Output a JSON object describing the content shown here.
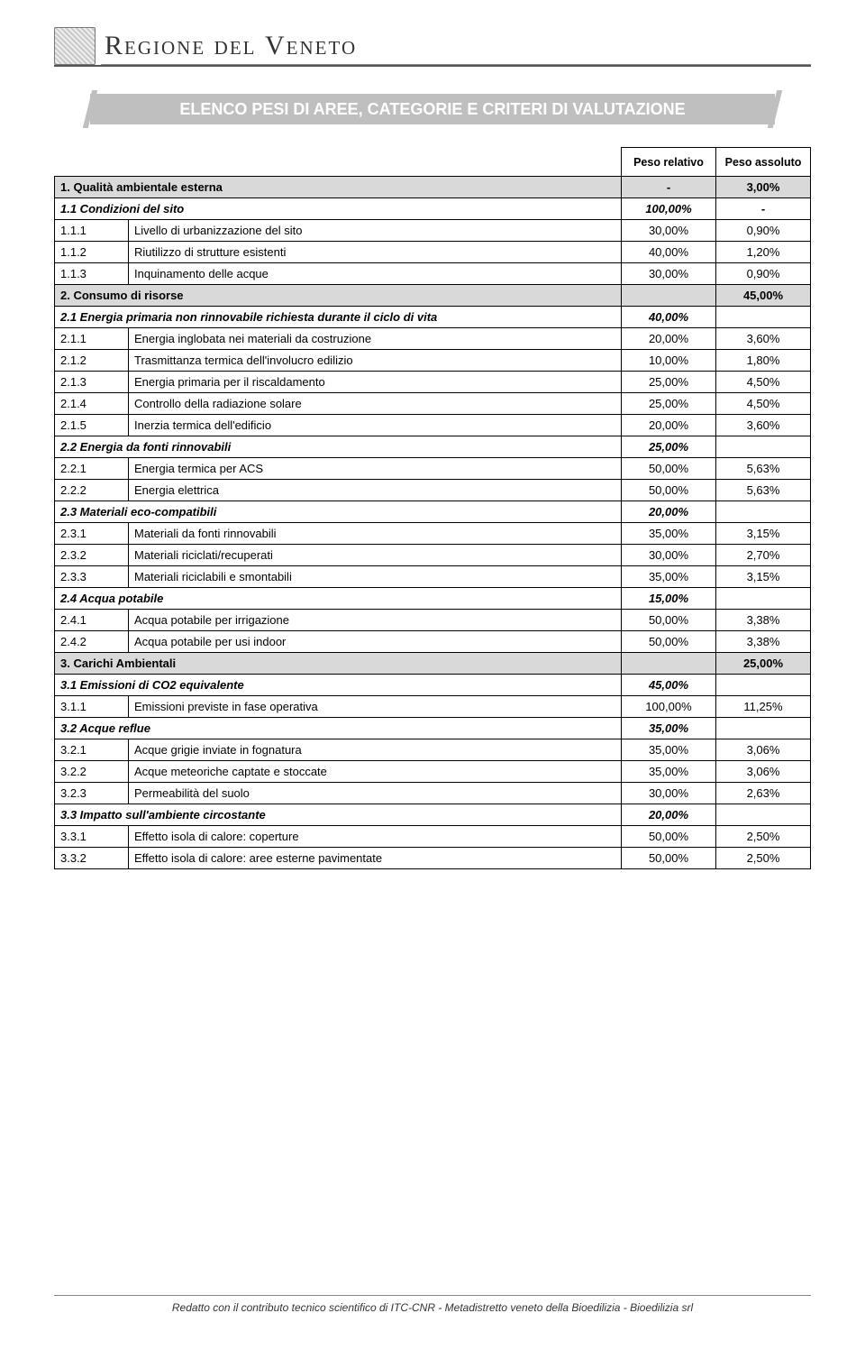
{
  "header": {
    "region_title_prefix": "R",
    "region_title_main_sc": "egione",
    "region_title_mid": " del ",
    "region_title_end_prefix": "V",
    "region_title_end_sc": "eneto"
  },
  "section_title": "ELENCO PESI DI AREE, CATEGORIE E CRITERI DI VALUTAZIONE",
  "columns": {
    "relative": "Peso relativo",
    "absolute": "Peso assoluto"
  },
  "rows": [
    {
      "type": "major",
      "code": null,
      "label": "1. Qualità ambientale esterna",
      "rel": "-",
      "abs": "3,00%"
    },
    {
      "type": "sub",
      "code": null,
      "label": "1.1 Condizioni del sito",
      "rel": "100,00%",
      "abs": "-"
    },
    {
      "type": "item",
      "code": "1.1.1",
      "label": "Livello di urbanizzazione del sito",
      "rel": "30,00%",
      "abs": "0,90%"
    },
    {
      "type": "item",
      "code": "1.1.2",
      "label": "Riutilizzo di strutture esistenti",
      "rel": "40,00%",
      "abs": "1,20%"
    },
    {
      "type": "item",
      "code": "1.1.3",
      "label": "Inquinamento delle acque",
      "rel": "30,00%",
      "abs": "0,90%"
    },
    {
      "type": "major",
      "code": null,
      "label": "2. Consumo di risorse",
      "rel": "",
      "abs": "45,00%"
    },
    {
      "type": "sub",
      "code": null,
      "label": "2.1 Energia primaria non rinnovabile richiesta durante il ciclo di vita",
      "rel": "40,00%",
      "abs": ""
    },
    {
      "type": "item",
      "code": "2.1.1",
      "label": "Energia inglobata nei materiali da costruzione",
      "rel": "20,00%",
      "abs": "3,60%"
    },
    {
      "type": "item",
      "code": "2.1.2",
      "label": "Trasmittanza termica dell'involucro edilizio",
      "rel": "10,00%",
      "abs": "1,80%"
    },
    {
      "type": "item",
      "code": "2.1.3",
      "label": "Energia primaria per il riscaldamento",
      "rel": "25,00%",
      "abs": "4,50%"
    },
    {
      "type": "item",
      "code": "2.1.4",
      "label": "Controllo della radiazione solare",
      "rel": "25,00%",
      "abs": "4,50%"
    },
    {
      "type": "item",
      "code": "2.1.5",
      "label": "Inerzia termica dell'edificio",
      "rel": "20,00%",
      "abs": "3,60%"
    },
    {
      "type": "sub",
      "code": null,
      "label": "2.2 Energia da fonti rinnovabili",
      "rel": "25,00%",
      "abs": ""
    },
    {
      "type": "item",
      "code": "2.2.1",
      "label": "Energia termica per ACS",
      "rel": "50,00%",
      "abs": "5,63%"
    },
    {
      "type": "item",
      "code": "2.2.2",
      "label": "Energia elettrica",
      "rel": "50,00%",
      "abs": "5,63%"
    },
    {
      "type": "sub",
      "code": null,
      "label": "2.3 Materiali eco-compatibili",
      "rel": "20,00%",
      "abs": ""
    },
    {
      "type": "item",
      "code": "2.3.1",
      "label": "Materiali da fonti rinnovabili",
      "rel": "35,00%",
      "abs": "3,15%"
    },
    {
      "type": "item",
      "code": "2.3.2",
      "label": "Materiali riciclati/recuperati",
      "rel": "30,00%",
      "abs": "2,70%"
    },
    {
      "type": "item",
      "code": "2.3.3",
      "label": "Materiali riciclabili e smontabili",
      "rel": "35,00%",
      "abs": "3,15%"
    },
    {
      "type": "sub",
      "code": null,
      "label": "2.4 Acqua potabile",
      "rel": "15,00%",
      "abs": ""
    },
    {
      "type": "item",
      "code": "2.4.1",
      "label": "Acqua potabile per irrigazione",
      "rel": "50,00%",
      "abs": "3,38%"
    },
    {
      "type": "item",
      "code": "2.4.2",
      "label": "Acqua potabile per usi indoor",
      "rel": "50,00%",
      "abs": "3,38%"
    },
    {
      "type": "major",
      "code": null,
      "label": "3. Carichi Ambientali",
      "rel": "",
      "abs": "25,00%"
    },
    {
      "type": "sub",
      "code": null,
      "label": "3.1 Emissioni di CO2 equivalente",
      "rel": "45,00%",
      "abs": ""
    },
    {
      "type": "item",
      "code": "3.1.1",
      "label": "Emissioni previste in fase operativa",
      "rel": "100,00%",
      "abs": "11,25%"
    },
    {
      "type": "sub",
      "code": null,
      "label": "3.2 Acque reflue",
      "rel": "35,00%",
      "abs": ""
    },
    {
      "type": "item",
      "code": "3.2.1",
      "label": "Acque grigie inviate in fognatura",
      "rel": "35,00%",
      "abs": "3,06%"
    },
    {
      "type": "item",
      "code": "3.2.2",
      "label": "Acque meteoriche captate e stoccate",
      "rel": "35,00%",
      "abs": "3,06%"
    },
    {
      "type": "item",
      "code": "3.2.3",
      "label": "Permeabilità del suolo",
      "rel": "30,00%",
      "abs": "2,63%"
    },
    {
      "type": "sub",
      "code": null,
      "label": "3.3 Impatto sull'ambiente circostante",
      "rel": "20,00%",
      "abs": ""
    },
    {
      "type": "item",
      "code": "3.3.1",
      "label": "Effetto isola di calore: coperture",
      "rel": "50,00%",
      "abs": "2,50%"
    },
    {
      "type": "item",
      "code": "3.3.2",
      "label": "Effetto isola di calore: aree esterne pavimentate",
      "rel": "50,00%",
      "abs": "2,50%"
    }
  ],
  "styling": {
    "major_bg": "#d9d9d9",
    "border_color": "#000000",
    "title_bar_bg": "#bfbfbf",
    "title_bar_fg": "#ffffff",
    "font_size_table": 13,
    "font_size_title": 18
  },
  "footer": "Redatto con il contributo tecnico scientifico di ITC-CNR - Metadistretto veneto della Bioedilizia - Bioedilizia srl"
}
